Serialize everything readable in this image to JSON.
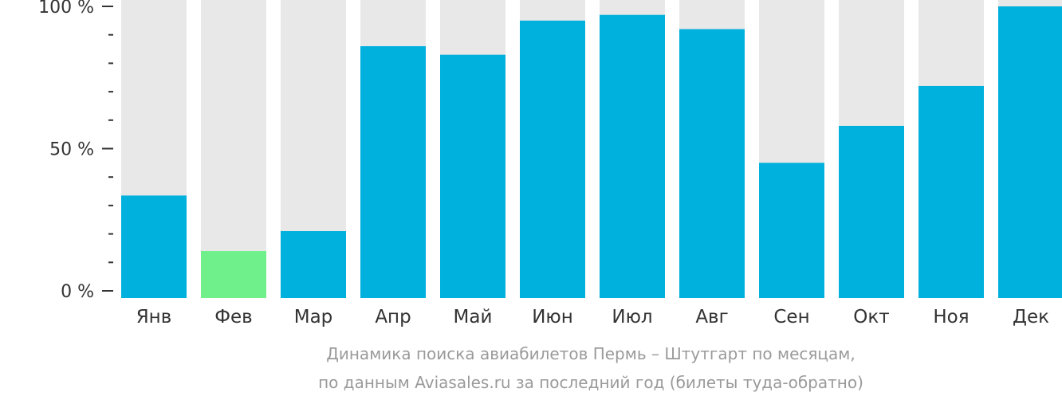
{
  "chart_data": {
    "type": "bar",
    "categories": [
      "Янв",
      "Фев",
      "Мар",
      "Апр",
      "Май",
      "Июн",
      "Июл",
      "Авг",
      "Сен",
      "Окт",
      "Ноя",
      "Дек"
    ],
    "values": [
      33.5,
      14,
      21,
      86,
      83,
      95,
      97,
      92,
      45,
      58,
      72,
      100
    ],
    "ylim": [
      0,
      100
    ],
    "yticks": [
      {
        "value": 0,
        "label": "0 %"
      },
      {
        "value": 50,
        "label": "50 %"
      },
      {
        "value": 100,
        "label": "100 %"
      }
    ],
    "minor_ticks_per_major": 5,
    "grid": false,
    "colors": {
      "bar": "#00b0dd",
      "highlight": "#6ff08a",
      "track": "#e8e8e8",
      "tick_label": "#333333",
      "axis": "#333333"
    },
    "highlight_index": 1,
    "caption_lines": [
      "Динамика поиска авиабилетов Пермь – Штутгарт по месяцам,",
      "по данным Aviasales.ru за последний год (билеты туда-обратно)"
    ]
  }
}
